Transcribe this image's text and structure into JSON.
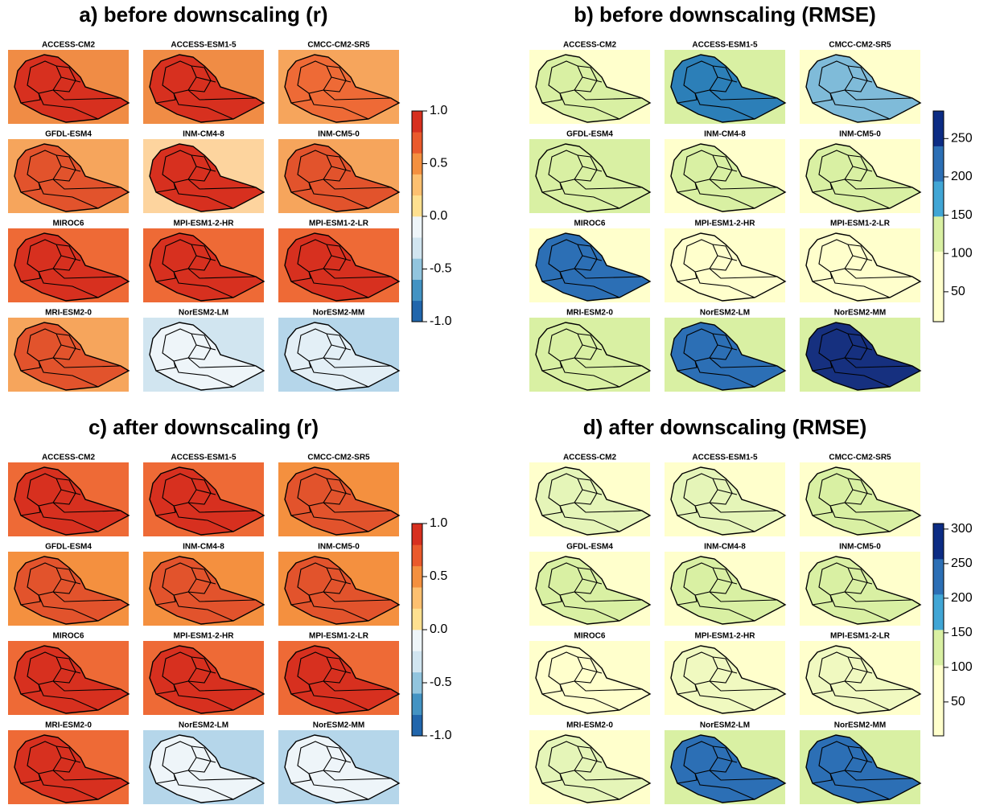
{
  "panels": [
    {
      "title": "a) before downscaling (r)",
      "maps": [
        {
          "name": "ACCESS-CM2",
          "colors": [
            "#f08c45",
            "#d7301f"
          ]
        },
        {
          "name": "ACCESS-ESM1-5",
          "colors": [
            "#f08c45",
            "#d7301f"
          ]
        },
        {
          "name": "CMCC-CM2-SR5",
          "colors": [
            "#f6a55c",
            "#ee6a36"
          ]
        },
        {
          "name": "GFDL-ESM4",
          "colors": [
            "#f6a55c",
            "#e2532c"
          ]
        },
        {
          "name": "INM-CM4-8",
          "colors": [
            "#fdd49e",
            "#d7301f"
          ]
        },
        {
          "name": "INM-CM5-0",
          "colors": [
            "#f6a55c",
            "#e2532c"
          ]
        },
        {
          "name": "MIROC6",
          "colors": [
            "#ee6a36",
            "#d7301f"
          ]
        },
        {
          "name": "MPI-ESM1-2-HR",
          "colors": [
            "#ee6a36",
            "#d7301f"
          ]
        },
        {
          "name": "MPI-ESM1-2-LR",
          "colors": [
            "#ee6a36",
            "#d7301f"
          ]
        },
        {
          "name": "MRI-ESM2-0",
          "colors": [
            "#f6a55c",
            "#e2532c"
          ]
        },
        {
          "name": "NorESM2-LM",
          "colors": [
            "#d1e5f0",
            "#eef5f9"
          ]
        },
        {
          "name": "NorESM2-MM",
          "colors": [
            "#b5d6ea",
            "#e3eff6"
          ]
        }
      ],
      "colorbar": {
        "lim": [
          -1,
          1
        ],
        "ticks": [
          {
            "value": -1,
            "label": "-1.0"
          },
          -0.5,
          {
            "value": 0,
            "label": "0.0"
          },
          0.5,
          {
            "value": 1,
            "label": "1.0"
          }
        ],
        "colors": [
          "#2166ac",
          "#4393c3",
          "#92c5de",
          "#d1e5f0",
          "#eef5f9",
          "#fee090",
          "#fdc070",
          "#f4903f",
          "#ea5a2c",
          "#d7301f"
        ]
      }
    },
    {
      "title": "b) before downscaling (RMSE)",
      "maps": [
        {
          "name": "ACCESS-CM2",
          "colors": [
            "#ffffcc",
            "#d9f0a3"
          ]
        },
        {
          "name": "ACCESS-ESM1-5",
          "colors": [
            "#d9f0a3",
            "#2c7fb8"
          ]
        },
        {
          "name": "CMCC-CM2-SR5",
          "colors": [
            "#ffffcc",
            "#7fbbd9"
          ]
        },
        {
          "name": "GFDL-ESM4",
          "colors": [
            "#d9f0a3",
            "#d9f0a3"
          ]
        },
        {
          "name": "INM-CM4-8",
          "colors": [
            "#ffffcc",
            "#d9f0a3"
          ]
        },
        {
          "name": "INM-CM5-0",
          "colors": [
            "#ffffcc",
            "#d9f0a3"
          ]
        },
        {
          "name": "MIROC6",
          "colors": [
            "#ffffcc",
            "#2c6fb5"
          ]
        },
        {
          "name": "MPI-ESM1-2-HR",
          "colors": [
            "#ffffcc",
            "#ffffcc"
          ]
        },
        {
          "name": "MPI-ESM1-2-LR",
          "colors": [
            "#ffffcc",
            "#ffffcc"
          ]
        },
        {
          "name": "MRI-ESM2-0",
          "colors": [
            "#d9f0a3",
            "#d9f0a3"
          ]
        },
        {
          "name": "NorESM2-LM",
          "colors": [
            "#d9f0a3",
            "#2c6fb5"
          ]
        },
        {
          "name": "NorESM2-MM",
          "colors": [
            "#d9f0a3",
            "#16307f"
          ]
        }
      ],
      "colorbar": {
        "lim": [
          11,
          286
        ],
        "ticks": [
          50,
          100,
          150,
          200,
          250
        ],
        "colors": [
          "#ffffcc",
          "#ffffcc",
          "#d9f0a3",
          "#41a6d5",
          "#2c6fb5",
          "#0c2c84"
        ]
      }
    },
    {
      "title": "c) after downscaling (r)",
      "maps": [
        {
          "name": "ACCESS-CM2",
          "colors": [
            "#ee6a36",
            "#d7301f"
          ]
        },
        {
          "name": "ACCESS-ESM1-5",
          "colors": [
            "#ee6a36",
            "#d7301f"
          ]
        },
        {
          "name": "CMCC-CM2-SR5",
          "colors": [
            "#f4903f",
            "#e2532c"
          ]
        },
        {
          "name": "GFDL-ESM4",
          "colors": [
            "#f4903f",
            "#e2532c"
          ]
        },
        {
          "name": "INM-CM4-8",
          "colors": [
            "#f4903f",
            "#e2532c"
          ]
        },
        {
          "name": "INM-CM5-0",
          "colors": [
            "#f4903f",
            "#e2532c"
          ]
        },
        {
          "name": "MIROC6",
          "colors": [
            "#ee6a36",
            "#d7301f"
          ]
        },
        {
          "name": "MPI-ESM1-2-HR",
          "colors": [
            "#ee6a36",
            "#d7301f"
          ]
        },
        {
          "name": "MPI-ESM1-2-LR",
          "colors": [
            "#ee6a36",
            "#d7301f"
          ]
        },
        {
          "name": "MRI-ESM2-0",
          "colors": [
            "#ee6a36",
            "#d7301f"
          ]
        },
        {
          "name": "NorESM2-LM",
          "colors": [
            "#b5d6ea",
            "#eef5f9"
          ]
        },
        {
          "name": "NorESM2-MM",
          "colors": [
            "#b5d6ea",
            "#eef5f9"
          ]
        }
      ],
      "colorbar": {
        "lim": [
          -1,
          1
        ],
        "ticks": [
          {
            "value": -1,
            "label": "-1.0"
          },
          -0.5,
          {
            "value": 0,
            "label": "0.0"
          },
          0.5,
          {
            "value": 1,
            "label": "1.0"
          }
        ],
        "colors": [
          "#2166ac",
          "#4393c3",
          "#92c5de",
          "#d1e5f0",
          "#eef5f9",
          "#fee090",
          "#fdc070",
          "#f4903f",
          "#ea5a2c",
          "#d7301f"
        ]
      }
    },
    {
      "title": "d) after downscaling (RMSE)",
      "maps": [
        {
          "name": "ACCESS-CM2",
          "colors": [
            "#ffffcc",
            "#e5f5b8"
          ]
        },
        {
          "name": "ACCESS-ESM1-5",
          "colors": [
            "#ffffcc",
            "#e5f5b8"
          ]
        },
        {
          "name": "CMCC-CM2-SR5",
          "colors": [
            "#ffffcc",
            "#d9f0a3"
          ]
        },
        {
          "name": "GFDL-ESM4",
          "colors": [
            "#ffffcc",
            "#d9f0a3"
          ]
        },
        {
          "name": "INM-CM4-8",
          "colors": [
            "#ffffcc",
            "#d9f0a3"
          ]
        },
        {
          "name": "INM-CM5-0",
          "colors": [
            "#ffffcc",
            "#d9f0a3"
          ]
        },
        {
          "name": "MIROC6",
          "colors": [
            "#ffffcc",
            "#ffffcc"
          ]
        },
        {
          "name": "MPI-ESM1-2-HR",
          "colors": [
            "#ffffcc",
            "#f0f9c0"
          ]
        },
        {
          "name": "MPI-ESM1-2-LR",
          "colors": [
            "#ffffcc",
            "#f0f9c0"
          ]
        },
        {
          "name": "MRI-ESM2-0",
          "colors": [
            "#ffffcc",
            "#e5f5b8"
          ]
        },
        {
          "name": "NorESM2-LM",
          "colors": [
            "#d9f0a3",
            "#2c6fb5"
          ]
        },
        {
          "name": "NorESM2-MM",
          "colors": [
            "#d9f0a3",
            "#2c6fb5"
          ]
        }
      ],
      "colorbar": {
        "lim": [
          1,
          308
        ],
        "ticks": [
          50,
          100,
          150,
          200,
          250,
          300
        ],
        "colors": [
          "#ffffcc",
          "#ffffcc",
          "#d9f0a3",
          "#41a6d5",
          "#2c6fb5",
          "#0c2c84"
        ]
      }
    }
  ]
}
